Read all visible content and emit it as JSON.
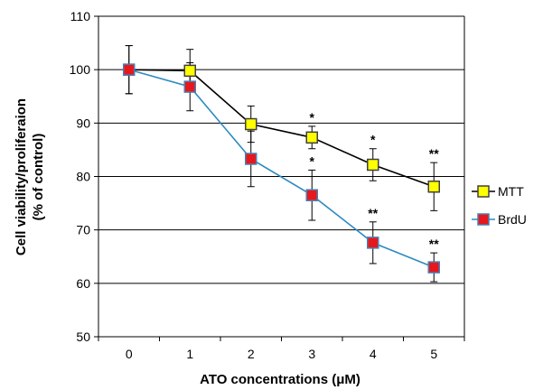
{
  "chart_data": {
    "type": "line",
    "xlabel": "ATO concentrations (μM)",
    "ylabel_line1": "Cell viability/proliferaion",
    "ylabel_line2": "(% of control)",
    "categories": [
      "0",
      "1",
      "2",
      "3",
      "4",
      "5"
    ],
    "ylim": [
      50,
      110
    ],
    "yticks": [
      50,
      60,
      70,
      80,
      90,
      100,
      110
    ],
    "grid": "horizontal",
    "legend_position": "right",
    "series": [
      {
        "name": "MTT",
        "color": "#000000",
        "marker_fill": "#ffff00",
        "marker_stroke": "#404040",
        "values": [
          100,
          99.8,
          89.8,
          87.3,
          82.2,
          78.1
        ],
        "errors": [
          4.5,
          4.0,
          3.4,
          2.1,
          3.0,
          4.5
        ],
        "significance": [
          "",
          "",
          "",
          "*",
          "*",
          "**"
        ]
      },
      {
        "name": "BrdU",
        "color": "#2e8bc0",
        "marker_fill": "#e8171c",
        "marker_stroke": "#4a7fb5",
        "values": [
          100,
          96.8,
          83.3,
          76.5,
          67.6,
          63.0
        ],
        "errors": [
          4.5,
          4.5,
          5.2,
          4.7,
          3.9,
          2.7
        ],
        "significance": [
          "",
          "",
          "",
          "*",
          "**",
          "**"
        ]
      }
    ]
  }
}
